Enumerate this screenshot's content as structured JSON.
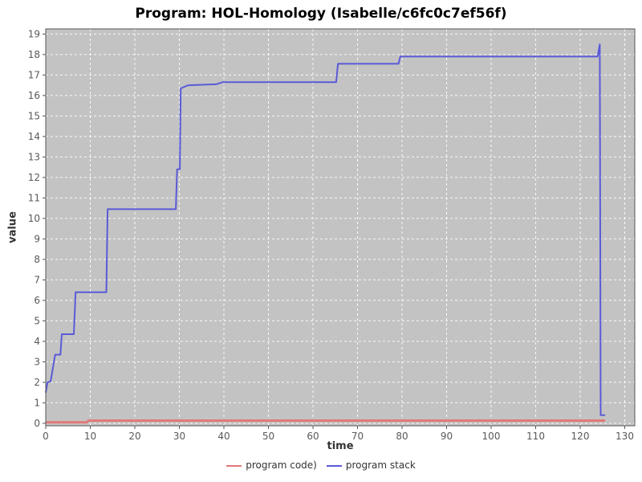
{
  "chart_data": {
    "type": "line",
    "title": "Program: HOL-Homology (Isabelle/c6fc0c7ef56f)",
    "xlabel": "time",
    "ylabel": "value",
    "xlim": [
      0,
      130
    ],
    "ylim": [
      0,
      19
    ],
    "xticks": [
      0,
      10,
      20,
      30,
      40,
      50,
      60,
      70,
      80,
      90,
      100,
      110,
      120,
      130
    ],
    "yticks": [
      0,
      1,
      2,
      3,
      4,
      5,
      6,
      7,
      8,
      9,
      10,
      11,
      12,
      13,
      14,
      15,
      16,
      17,
      18,
      19
    ],
    "grid": true,
    "legend_position": "bottom",
    "colors": {
      "plot_bg": "#c3c3c3",
      "grid": "#ffffff",
      "border": "#555555",
      "tick_text": "#595959",
      "axis_label_text": "#333333",
      "title_text": "#000000"
    },
    "series": [
      {
        "name": "program code)",
        "color": "#e07878",
        "points": [
          [
            0,
            0.05
          ],
          [
            9.2,
            0.05
          ],
          [
            9.6,
            0.13
          ],
          [
            125.6,
            0.13
          ]
        ]
      },
      {
        "name": "program stack",
        "color": "#5a5ad8",
        "points": [
          [
            0,
            1.5
          ],
          [
            0.4,
            2.0
          ],
          [
            1.1,
            2.05
          ],
          [
            2.1,
            3.35
          ],
          [
            3.3,
            3.35
          ],
          [
            3.6,
            4.35
          ],
          [
            6.3,
            4.35
          ],
          [
            6.7,
            6.4
          ],
          [
            13.6,
            6.4
          ],
          [
            13.9,
            10.45
          ],
          [
            29.2,
            10.45
          ],
          [
            29.5,
            12.4
          ],
          [
            30.1,
            12.4
          ],
          [
            30.3,
            16.35
          ],
          [
            32.0,
            16.5
          ],
          [
            38.3,
            16.55
          ],
          [
            39.7,
            16.65
          ],
          [
            65.2,
            16.65
          ],
          [
            65.6,
            17.55
          ],
          [
            79.2,
            17.55
          ],
          [
            79.6,
            17.9
          ],
          [
            123.9,
            17.9
          ],
          [
            124.4,
            18.5
          ],
          [
            124.6,
            0.4
          ],
          [
            125.6,
            0.4
          ]
        ]
      }
    ]
  }
}
